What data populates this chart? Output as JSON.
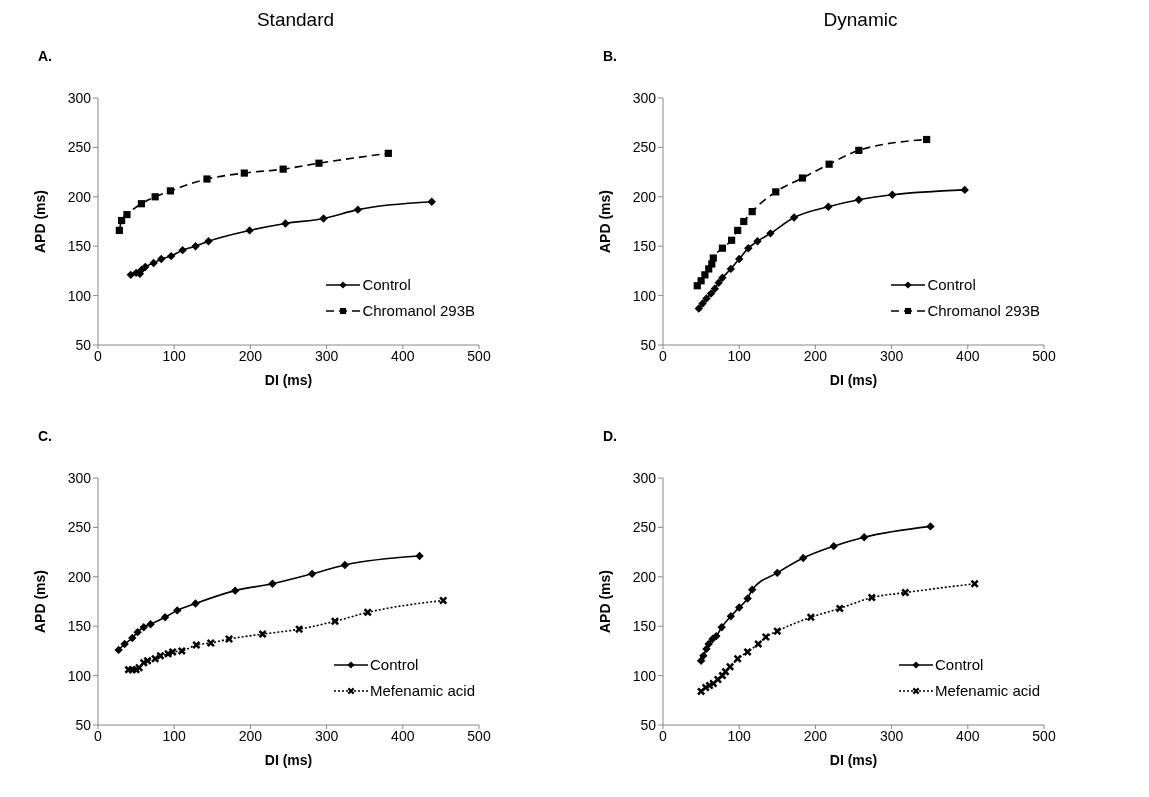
{
  "chart_data": [
    {
      "type": "line",
      "subtitle": "Standard",
      "title": "A.",
      "xlabel": "DI (ms)",
      "ylabel": "APD (ms)",
      "xlim": [
        0,
        500
      ],
      "xticks": [
        0,
        100,
        200,
        300,
        400,
        500
      ],
      "ylim": [
        50,
        300
      ],
      "yticks": [
        50,
        100,
        150,
        200,
        250,
        300
      ],
      "grid": false,
      "legend": "bottom right",
      "series": [
        {
          "name": "Control",
          "color": "#000000",
          "marker": "diamond",
          "line_style": "solid",
          "x": [
            43,
            50,
            55,
            57,
            62,
            73,
            83,
            96,
            111,
            128,
            145,
            199,
            246,
            296,
            341,
            438
          ],
          "values": [
            121,
            123,
            122,
            126,
            129,
            133,
            137,
            140,
            146,
            150,
            155,
            166,
            173,
            178,
            187,
            195
          ]
        },
        {
          "name": "Chromanol 293B",
          "color": "#000000",
          "marker": "square",
          "line_style": "dashed",
          "x": [
            28,
            31,
            38,
            57,
            75,
            95,
            143,
            192,
            243,
            290,
            381
          ],
          "values": [
            166,
            176,
            182,
            193,
            200,
            206,
            218,
            224,
            228,
            234,
            244
          ]
        }
      ]
    },
    {
      "type": "line",
      "subtitle": "Dynamic",
      "title": "B.",
      "xlabel": "DI (ms)",
      "ylabel": "APD (ms)",
      "xlim": [
        0,
        500
      ],
      "xticks": [
        0,
        100,
        200,
        300,
        400,
        500
      ],
      "ylim": [
        50,
        300
      ],
      "yticks": [
        50,
        100,
        150,
        200,
        250,
        300
      ],
      "grid": false,
      "legend": "bottom right",
      "series": [
        {
          "name": "Control",
          "color": "#000000",
          "marker": "diamond",
          "line_style": "solid",
          "x": [
            47,
            52,
            57,
            63,
            68,
            73,
            78,
            89,
            100,
            112,
            124,
            141,
            172,
            217,
            257,
            301,
            396
          ],
          "values": [
            87,
            92,
            97,
            102,
            107,
            113,
            118,
            127,
            137,
            148,
            155,
            163,
            179,
            190,
            197,
            202,
            207
          ]
        },
        {
          "name": "Chromanol 293B",
          "color": "#000000",
          "marker": "square",
          "line_style": "dashed",
          "x": [
            45,
            50,
            55,
            60,
            64,
            66,
            78,
            90,
            98,
            106,
            117,
            148,
            183,
            218,
            257,
            346
          ],
          "values": [
            110,
            115,
            121,
            127,
            132,
            138,
            148,
            156,
            166,
            175,
            185,
            205,
            219,
            233,
            247,
            258
          ]
        }
      ]
    },
    {
      "type": "line",
      "title": "C.",
      "xlabel": "DI (ms)",
      "ylabel": "APD (ms)",
      "xlim": [
        0,
        500
      ],
      "xticks": [
        0,
        100,
        200,
        300,
        400,
        500
      ],
      "ylim": [
        50,
        300
      ],
      "yticks": [
        50,
        100,
        150,
        200,
        250,
        300
      ],
      "grid": false,
      "legend": "bottom right",
      "series": [
        {
          "name": "Control",
          "color": "#000000",
          "marker": "diamond",
          "line_style": "solid",
          "x": [
            27,
            35,
            45,
            52,
            60,
            69,
            88,
            104,
            128,
            180,
            229,
            281,
            324,
            422
          ],
          "values": [
            126,
            132,
            138,
            144,
            149,
            152,
            159,
            166,
            173,
            186,
            193,
            203,
            212,
            221
          ]
        },
        {
          "name": "Mefenamic acid",
          "color": "#000000",
          "marker": "cross",
          "line_style": "dotted",
          "x": [
            40,
            45,
            50,
            54,
            60,
            65,
            75,
            82,
            92,
            98,
            110,
            129,
            148,
            172,
            216,
            264,
            311,
            354,
            453
          ],
          "values": [
            106,
            106,
            106,
            108,
            113,
            115,
            117,
            120,
            122,
            124,
            125,
            131,
            133,
            137,
            142,
            147,
            155,
            164,
            176
          ]
        }
      ]
    },
    {
      "type": "line",
      "title": "D.",
      "xlabel": "DI (ms)",
      "ylabel": "APD (ms)",
      "xlim": [
        0,
        500
      ],
      "xticks": [
        0,
        100,
        200,
        300,
        400,
        500
      ],
      "ylim": [
        50,
        300
      ],
      "yticks": [
        50,
        100,
        150,
        200,
        250,
        300
      ],
      "grid": false,
      "legend": "bottom right",
      "series": [
        {
          "name": "Control",
          "color": "#000000",
          "marker": "diamond",
          "line_style": "solid",
          "x": [
            50,
            53,
            57,
            60,
            65,
            70,
            77,
            89,
            100,
            111,
            117,
            150,
            184,
            224,
            264,
            351
          ],
          "values": [
            115,
            120,
            127,
            132,
            137,
            140,
            149,
            160,
            169,
            178,
            187,
            204,
            219,
            231,
            240,
            251
          ]
        },
        {
          "name": "Mefenamic acid",
          "color": "#000000",
          "marker": "cross",
          "line_style": "dotted",
          "x": [
            50,
            56,
            61,
            66,
            72,
            78,
            82,
            88,
            98,
            111,
            125,
            135,
            150,
            194,
            232,
            274,
            318,
            409
          ],
          "values": [
            84,
            88,
            90,
            92,
            96,
            100,
            104,
            109,
            117,
            124,
            132,
            139,
            145,
            159,
            168,
            179,
            184,
            193
          ]
        }
      ]
    }
  ]
}
